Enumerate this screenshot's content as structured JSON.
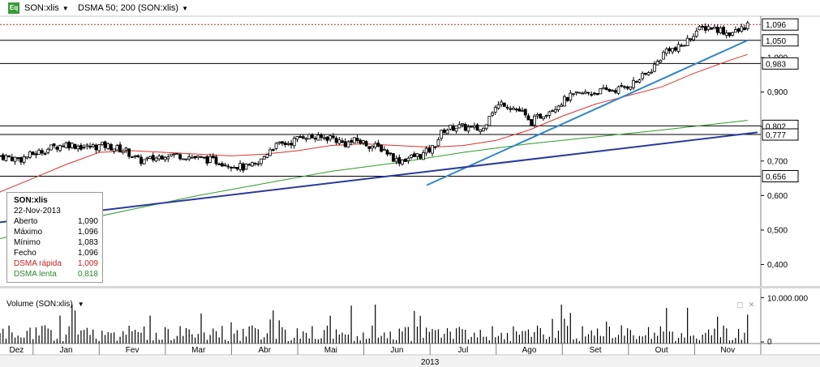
{
  "toolbar": {
    "symbol_label": "SON:xlis",
    "indicator_label": "DSMA 50; 200 (SON:xlis)",
    "eq_icon": "Eq"
  },
  "colors": {
    "fast_ma": "#e03030",
    "slow_ma": "#2f9a2f",
    "trend_blue": "#2f86c8",
    "trend_navy": "#2c3a9a",
    "candle_up": "#ffffff",
    "candle_down": "#000000",
    "last_price_line": "#b03030"
  },
  "info_box": {
    "symbol": "SON:xlis",
    "date": "22-Nov-2013",
    "rows": [
      {
        "label": "Aberto",
        "value": "1,090",
        "color": "#000000"
      },
      {
        "label": "Máximo",
        "value": "1,096",
        "color": "#000000"
      },
      {
        "label": "Mínimo",
        "value": "1,083",
        "color": "#000000"
      },
      {
        "label": "Fecho",
        "value": "1,096",
        "color": "#000000"
      },
      {
        "label": "DSMA rápida",
        "value": "1,009",
        "color": "#cc2020"
      },
      {
        "label": "DSMA lenta",
        "value": "0,818",
        "color": "#2a8a2a"
      }
    ]
  },
  "volume_panel": {
    "label": "Volume (SON:xlis)",
    "axis_max_label": "10.000.000",
    "axis_zero_label": "0"
  },
  "chart_data": {
    "type": "candlestick",
    "ylim": [
      0.34,
      1.12
    ],
    "y_ticks": [
      "0,400",
      "0,500",
      "0,600",
      "0,700",
      "0,800",
      "0,900",
      "1,000"
    ],
    "y_tick_values": [
      0.4,
      0.5,
      0.6,
      0.7,
      0.8,
      0.9,
      1.0
    ],
    "x_month_labels": [
      "Dez",
      "Jan",
      "Fev",
      "Mar",
      "Abr",
      "Mai",
      "Jun",
      "Jul",
      "Ago",
      "Set",
      "Out",
      "Nov"
    ],
    "x_month_starts": [
      0.0,
      0.5,
      1.5,
      2.5,
      3.5,
      4.5,
      5.5,
      6.5,
      7.5,
      8.5,
      9.5,
      10.5
    ],
    "x_range": [
      0,
      11.5
    ],
    "year_label": "2013",
    "horizontal_levels": [
      {
        "value": 1.05,
        "label": "1,050"
      },
      {
        "value": 0.983,
        "label": "0,983"
      },
      {
        "value": 0.802,
        "label": "0,802"
      },
      {
        "value": 0.777,
        "label": "0,777"
      },
      {
        "value": 0.656,
        "label": "0,656"
      }
    ],
    "last_price": {
      "value": 1.096,
      "label": "1,096"
    },
    "price_path": [
      [
        0.0,
        0.715
      ],
      [
        0.3,
        0.705
      ],
      [
        0.5,
        0.72
      ],
      [
        0.8,
        0.74
      ],
      [
        1.0,
        0.75
      ],
      [
        1.3,
        0.74
      ],
      [
        1.6,
        0.745
      ],
      [
        1.9,
        0.73
      ],
      [
        2.1,
        0.7
      ],
      [
        2.3,
        0.705
      ],
      [
        2.5,
        0.72
      ],
      [
        2.8,
        0.715
      ],
      [
        3.1,
        0.705
      ],
      [
        3.4,
        0.695
      ],
      [
        3.7,
        0.68
      ],
      [
        3.9,
        0.69
      ],
      [
        4.1,
        0.74
      ],
      [
        4.4,
        0.755
      ],
      [
        4.6,
        0.775
      ],
      [
        4.8,
        0.765
      ],
      [
        5.0,
        0.77
      ],
      [
        5.2,
        0.75
      ],
      [
        5.4,
        0.76
      ],
      [
        5.6,
        0.745
      ],
      [
        5.8,
        0.735
      ],
      [
        6.0,
        0.7
      ],
      [
        6.2,
        0.71
      ],
      [
        6.4,
        0.72
      ],
      [
        6.55,
        0.74
      ],
      [
        6.7,
        0.79
      ],
      [
        6.9,
        0.8
      ],
      [
        7.1,
        0.795
      ],
      [
        7.3,
        0.79
      ],
      [
        7.4,
        0.84
      ],
      [
        7.6,
        0.87
      ],
      [
        7.75,
        0.855
      ],
      [
        7.9,
        0.84
      ],
      [
        8.0,
        0.81
      ],
      [
        8.2,
        0.835
      ],
      [
        8.4,
        0.86
      ],
      [
        8.6,
        0.885
      ],
      [
        8.8,
        0.895
      ],
      [
        9.0,
        0.9
      ],
      [
        9.2,
        0.905
      ],
      [
        9.4,
        0.91
      ],
      [
        9.6,
        0.93
      ],
      [
        9.8,
        0.955
      ],
      [
        9.95,
        0.99
      ],
      [
        10.1,
        1.03
      ],
      [
        10.2,
        1.02
      ],
      [
        10.35,
        1.04
      ],
      [
        10.5,
        1.075
      ],
      [
        10.7,
        1.09
      ],
      [
        10.9,
        1.08
      ],
      [
        11.0,
        1.07
      ],
      [
        11.15,
        1.075
      ],
      [
        11.3,
        1.096
      ]
    ],
    "fast_ma": [
      [
        0.0,
        0.61
      ],
      [
        0.5,
        0.65
      ],
      [
        1.0,
        0.69
      ],
      [
        1.5,
        0.725
      ],
      [
        2.0,
        0.73
      ],
      [
        2.5,
        0.725
      ],
      [
        3.0,
        0.72
      ],
      [
        3.5,
        0.715
      ],
      [
        4.0,
        0.72
      ],
      [
        4.5,
        0.73
      ],
      [
        5.0,
        0.745
      ],
      [
        5.5,
        0.75
      ],
      [
        6.0,
        0.745
      ],
      [
        6.5,
        0.74
      ],
      [
        7.0,
        0.745
      ],
      [
        7.5,
        0.76
      ],
      [
        8.0,
        0.79
      ],
      [
        8.5,
        0.83
      ],
      [
        9.0,
        0.865
      ],
      [
        9.5,
        0.89
      ],
      [
        10.0,
        0.915
      ],
      [
        10.5,
        0.955
      ],
      [
        11.0,
        0.99
      ],
      [
        11.3,
        1.009
      ]
    ],
    "slow_ma": [
      [
        0.0,
        0.475
      ],
      [
        1.0,
        0.52
      ],
      [
        2.0,
        0.56
      ],
      [
        3.0,
        0.6
      ],
      [
        4.0,
        0.635
      ],
      [
        5.0,
        0.67
      ],
      [
        6.0,
        0.695
      ],
      [
        7.0,
        0.725
      ],
      [
        8.0,
        0.75
      ],
      [
        9.0,
        0.77
      ],
      [
        10.0,
        0.79
      ],
      [
        11.3,
        0.818
      ]
    ],
    "trendlines": [
      {
        "name": "trend_blue",
        "points": [
          [
            6.45,
            0.63
          ],
          [
            11.3,
            1.05
          ]
        ]
      },
      {
        "name": "trend_navy",
        "points": [
          [
            -0.1,
            0.52
          ],
          [
            11.45,
            0.783
          ]
        ]
      }
    ],
    "volume_ylim": [
      0,
      12000000
    ],
    "volume_max_label_value": 10000000
  }
}
